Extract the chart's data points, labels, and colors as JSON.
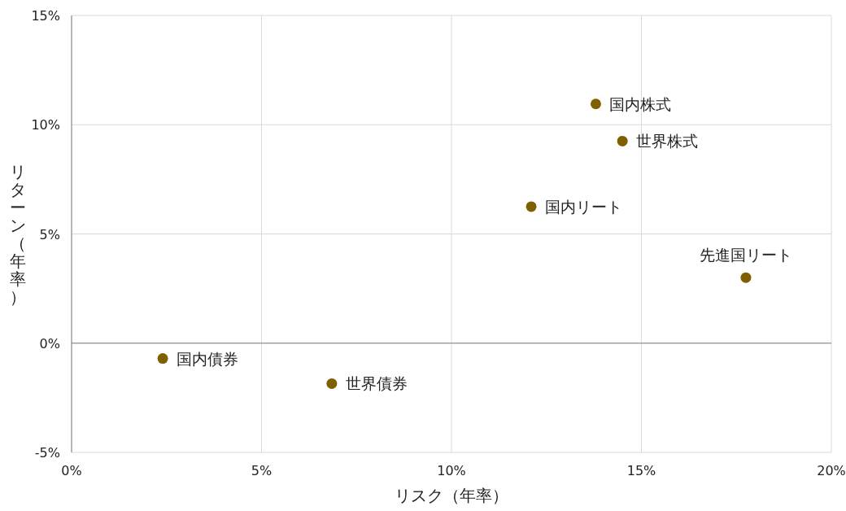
{
  "chart_data": {
    "type": "scatter",
    "xlabel": "リスク（年率）",
    "ylabel": "リターン（年率）",
    "xlim": [
      0,
      20
    ],
    "ylim": [
      -5,
      15
    ],
    "xticks": [
      {
        "value": 0,
        "label": "0%"
      },
      {
        "value": 5,
        "label": "5%"
      },
      {
        "value": 10,
        "label": "10%"
      },
      {
        "value": 15,
        "label": "15%"
      },
      {
        "value": 20,
        "label": "20%"
      }
    ],
    "yticks": [
      {
        "value": -5,
        "label": "-5%"
      },
      {
        "value": 0,
        "label": "0%"
      },
      {
        "value": 5,
        "label": "5%"
      },
      {
        "value": 10,
        "label": "10%"
      },
      {
        "value": 15,
        "label": "15%"
      }
    ],
    "grid": true,
    "marker": "circle",
    "series": [
      {
        "name": "国内株式",
        "color": "#7f6000",
        "x": [
          13.8
        ],
        "values": [
          10.95
        ]
      },
      {
        "name": "世界株式",
        "color": "#7f6000",
        "x": [
          14.5
        ],
        "values": [
          9.25
        ]
      },
      {
        "name": "国内リート",
        "color": "#7f6000",
        "x": [
          12.1
        ],
        "values": [
          6.25
        ]
      },
      {
        "name": "先進国リート",
        "color": "#7f6000",
        "x": [
          17.75
        ],
        "values": [
          3.0
        ]
      },
      {
        "name": "国内債券",
        "color": "#7f6000",
        "x": [
          2.4
        ],
        "values": [
          -0.7
        ]
      },
      {
        "name": "世界債券",
        "color": "#7f6000",
        "x": [
          6.85
        ],
        "values": [
          -1.85
        ]
      }
    ]
  }
}
